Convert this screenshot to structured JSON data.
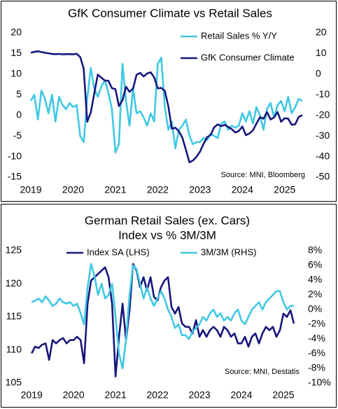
{
  "chart_data": [
    {
      "type": "line",
      "title": "GfK Consumer Climate vs Retail Sales",
      "source": "Source: MNI, Bloomberg",
      "legend": "upper right",
      "x": [
        2019,
        2019.083,
        2019.167,
        2019.25,
        2019.333,
        2019.417,
        2019.5,
        2019.583,
        2019.667,
        2019.75,
        2019.833,
        2019.917,
        2020,
        2020.083,
        2020.167,
        2020.25,
        2020.333,
        2020.417,
        2020.5,
        2020.583,
        2020.667,
        2020.75,
        2020.833,
        2020.917,
        2021,
        2021.083,
        2021.167,
        2021.25,
        2021.333,
        2021.417,
        2021.5,
        2021.583,
        2021.667,
        2021.75,
        2021.833,
        2021.917,
        2022,
        2022.083,
        2022.167,
        2022.25,
        2022.333,
        2022.417,
        2022.5,
        2022.583,
        2022.667,
        2022.75,
        2022.833,
        2022.917,
        2023,
        2023.083,
        2023.167,
        2023.25,
        2023.333,
        2023.417,
        2023.5,
        2023.583,
        2023.667,
        2023.75,
        2023.833,
        2023.917,
        2024,
        2024.083,
        2024.167,
        2024.25,
        2024.333,
        2024.417,
        2024.5,
        2024.583,
        2024.667,
        2024.75,
        2024.833,
        2024.917,
        2025,
        2025.083,
        2025.167,
        2025.25,
        2025.333,
        2025.417
      ],
      "xlim": [
        2018.9,
        2025.55
      ],
      "xticks": [
        2019,
        2020,
        2021,
        2022,
        2023,
        2024,
        2025
      ],
      "ylim": [
        -15,
        20
      ],
      "yticks": [
        -15,
        -10,
        -5,
        0,
        5,
        10,
        15,
        20
      ],
      "y2lim": [
        -50,
        20
      ],
      "y2ticks": [
        -50,
        -40,
        -30,
        -20,
        -10,
        0,
        10,
        20
      ],
      "series": [
        {
          "name": "Retail Sales % Y/Y",
          "color": "#40c8e4",
          "values": [
            3.5,
            5.0,
            -1.0,
            6.0,
            4.0,
            0.5,
            5.0,
            -1.5,
            4.5,
            2.5,
            1.5,
            3.0,
            2.0,
            2.5,
            -5.0,
            -6.5,
            4.0,
            11.5,
            6.5,
            4.5,
            7.0,
            8.5,
            5.5,
            1.5,
            -9.0,
            -7.0,
            12.5,
            3.5,
            -2.5,
            6.5,
            0.5,
            1.0,
            -0.5,
            -2.5,
            0.5,
            -1.5,
            12.5,
            14.0,
            2.0,
            -3.5,
            -1.5,
            -8.0,
            -3.5,
            -2.5,
            -1.0,
            -5.0,
            -7.0,
            -6.5,
            -6.5,
            -5.5,
            -6.0,
            -4.5,
            -5.0,
            -5.5,
            -2.0,
            -1.5,
            -3.5,
            -2.5,
            -3.0,
            -2.5,
            0.5,
            -1.5,
            1.0,
            -2.0,
            2.0,
            0.0,
            -3.5,
            1.5,
            3.0,
            -0.5,
            2.5,
            3.5,
            1.0,
            4.5,
            0.5,
            2.0,
            4.0,
            3.5
          ]
        },
        {
          "name": "GfK Consumer Climate",
          "color": "#17177c",
          "axis": "y2",
          "values": [
            10.4,
            10.8,
            11.1,
            10.7,
            10.4,
            10.1,
            9.8,
            9.7,
            9.8,
            9.6,
            9.7,
            9.7,
            9.6,
            9.9,
            8.3,
            2.7,
            -23.1,
            -18.6,
            -9.4,
            -0.2,
            -1.7,
            -3.1,
            -3.2,
            -6.8,
            -7.3,
            -15.5,
            -12.7,
            -6.1,
            -8.6,
            -7.0,
            -0.3,
            0.6,
            -1.1,
            0.3,
            0.9,
            -1.6,
            -6.9,
            -6.7,
            -8.1,
            -15.5,
            -26.5,
            -26.0,
            -27.7,
            -30.9,
            -36.8,
            -42.8,
            -41.9,
            -40.1,
            -37.6,
            -33.8,
            -30.6,
            -29.5,
            -25.8,
            -24.4,
            -25.2,
            -24.6,
            -25.6,
            -26.7,
            -28.3,
            -27.6,
            -25.4,
            -29.6,
            -28.8,
            -27.3,
            -24.0,
            -20.9,
            -21.6,
            -18.4,
            -22.0,
            -21.0,
            -18.4,
            -23.1,
            -21.4,
            -21.6,
            -24.6,
            -24.3,
            -20.8,
            -19.9
          ]
        }
      ]
    },
    {
      "type": "line",
      "title": "German Retail Sales (ex. Cars)",
      "subtitle": "Index vs % 3M/3M",
      "source": "Source: MNI, Destatis",
      "legend": "upper center",
      "x": [
        2019,
        2019.083,
        2019.167,
        2019.25,
        2019.333,
        2019.417,
        2019.5,
        2019.583,
        2019.667,
        2019.75,
        2019.833,
        2019.917,
        2020,
        2020.083,
        2020.167,
        2020.25,
        2020.333,
        2020.417,
        2020.5,
        2020.583,
        2020.667,
        2020.75,
        2020.833,
        2020.917,
        2021,
        2021.083,
        2021.167,
        2021.25,
        2021.333,
        2021.417,
        2021.5,
        2021.583,
        2021.667,
        2021.75,
        2021.833,
        2021.917,
        2022,
        2022.083,
        2022.167,
        2022.25,
        2022.333,
        2022.417,
        2022.5,
        2022.583,
        2022.667,
        2022.75,
        2022.833,
        2022.917,
        2023,
        2023.083,
        2023.167,
        2023.25,
        2023.333,
        2023.417,
        2023.5,
        2023.583,
        2023.667,
        2023.75,
        2023.833,
        2023.917,
        2024,
        2024.083,
        2024.167,
        2024.25,
        2024.333,
        2024.417,
        2024.5,
        2024.583,
        2024.667,
        2024.75,
        2024.833,
        2024.917,
        2025,
        2025.083,
        2025.167,
        2025.25
      ],
      "xlim": [
        2018.88,
        2025.45
      ],
      "xticks": [
        2019,
        2020,
        2021,
        2022,
        2023,
        2024,
        2025
      ],
      "ylim": [
        105,
        125
      ],
      "yticks": [
        105,
        110,
        115,
        120,
        125
      ],
      "y2lim": [
        -10,
        8
      ],
      "y2ticks": [
        {
          "value": -10,
          "label": "-10%"
        },
        {
          "value": -8,
          "label": "-8%"
        },
        {
          "value": -6,
          "label": "-6%"
        },
        {
          "value": -4,
          "label": "-4%"
        },
        {
          "value": -2,
          "label": "-2%"
        },
        {
          "value": 0,
          "label": "0%"
        },
        {
          "value": 2,
          "label": "2%"
        },
        {
          "value": 4,
          "label": "4%"
        },
        {
          "value": 6,
          "label": "6%"
        },
        {
          "value": 8,
          "label": "8%"
        }
      ],
      "series": [
        {
          "name": "Index SA (LHS)",
          "color": "#17177c",
          "values": [
            109.5,
            110.5,
            110.3,
            110.8,
            111.0,
            108.5,
            111.5,
            111.0,
            111.5,
            111.8,
            111.0,
            111.5,
            111.5,
            112.0,
            111.5,
            108.0,
            117.0,
            120.5,
            121.0,
            121.5,
            122.0,
            122.5,
            121.0,
            117.0,
            106.0,
            112.0,
            117.0,
            111.5,
            116.0,
            123.0,
            122.0,
            119.5,
            121.0,
            119.0,
            121.0,
            118.0,
            117.5,
            119.5,
            120.5,
            121.0,
            116.5,
            115.5,
            116.5,
            114.0,
            113.5,
            113.5,
            112.5,
            114.5,
            112.0,
            113.0,
            112.0,
            113.0,
            113.5,
            113.0,
            112.0,
            113.5,
            113.0,
            112.0,
            112.5,
            111.0,
            111.0,
            112.0,
            110.5,
            112.0,
            112.5,
            111.0,
            112.5,
            113.5,
            113.0,
            113.5,
            112.0,
            113.0,
            115.5,
            115.0,
            116.0,
            114.0
          ]
        },
        {
          "name": "3M/3M (RHS)",
          "color": "#40c8e4",
          "axis": "y2",
          "values": [
            1.0,
            1.2,
            1.5,
            1.0,
            1.8,
            1.2,
            0.5,
            0.8,
            1.5,
            1.0,
            0.8,
            1.0,
            0.5,
            0.8,
            -0.5,
            -2.0,
            3.0,
            6.2,
            4.5,
            2.0,
            3.5,
            1.5,
            2.0,
            3.5,
            -1.0,
            -6.0,
            -8.0,
            -4.0,
            2.0,
            6.0,
            5.5,
            3.5,
            1.5,
            3.0,
            1.5,
            0.5,
            1.5,
            2.5,
            1.5,
            0.0,
            -1.0,
            -2.5,
            -2.0,
            -3.5,
            -3.5,
            -4.0,
            -3.0,
            -2.5,
            -2.0,
            -1.0,
            -1.5,
            -0.5,
            0.0,
            -1.0,
            -0.5,
            -1.5,
            -1.0,
            -1.5,
            -0.5,
            0.0,
            -1.5,
            -2.0,
            -1.0,
            0.0,
            0.5,
            1.0,
            0.0,
            1.0,
            1.5,
            2.0,
            2.5,
            2.5,
            1.0,
            0.0,
            0.5,
            0.5
          ]
        }
      ]
    }
  ]
}
